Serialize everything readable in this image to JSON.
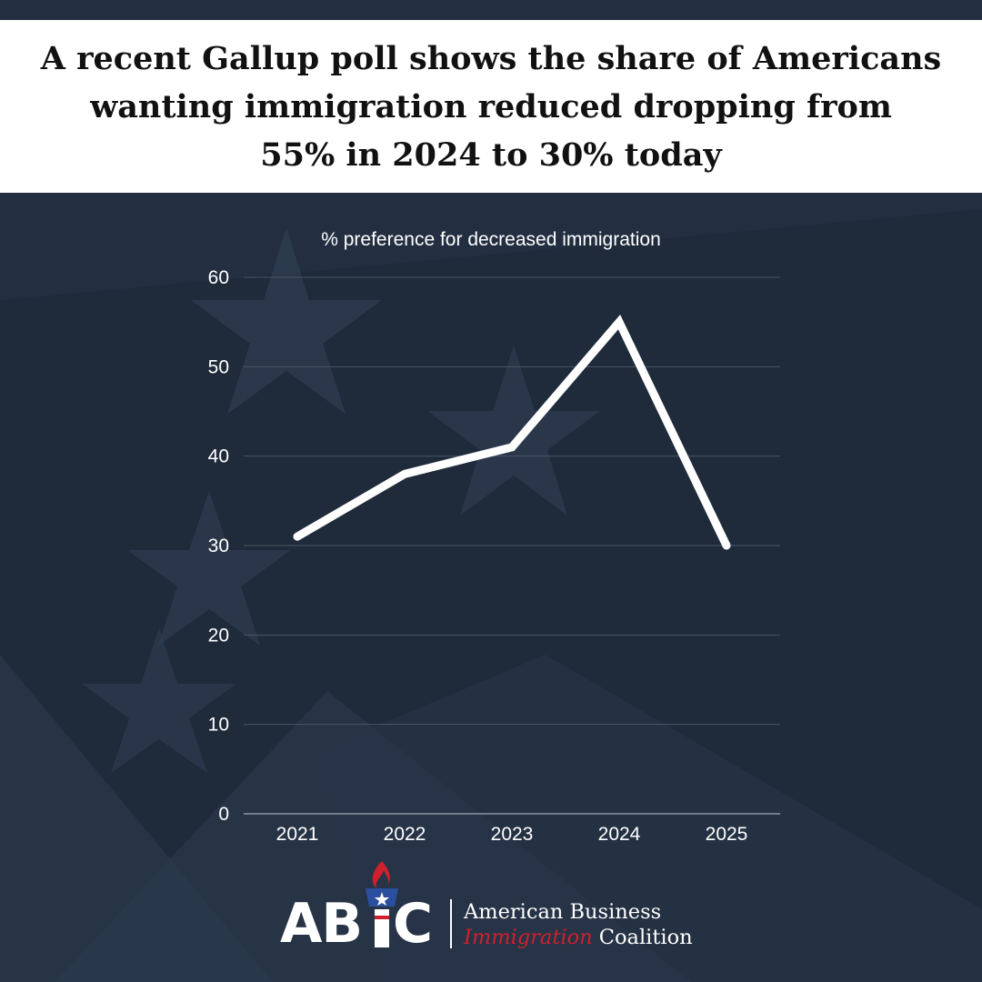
{
  "headline": {
    "line1": "A recent Gallup poll shows the share of  Americans",
    "line2": "wanting immigration reduced dropping from",
    "line3": "55% in 2024 to 30% today"
  },
  "colors": {
    "background": "#1f2b3b",
    "line": "#ffffff",
    "grid": "#4a5666",
    "logo_accent": "#d0202d",
    "torch_blue": "#2a4f9e"
  },
  "chart_data": {
    "type": "line",
    "title": "% preference for decreased immigration",
    "x": [
      "2021",
      "2022",
      "2023",
      "2024",
      "2025"
    ],
    "series": [
      {
        "values": [
          31,
          38,
          41,
          55,
          30
        ]
      }
    ],
    "ylim": [
      0,
      60
    ],
    "yticks": [
      0,
      10,
      20,
      30,
      40,
      50,
      60
    ],
    "grid": true,
    "legend": "none"
  },
  "logo": {
    "letters_ab": "AB",
    "letter_c": "C",
    "line1": "American Business",
    "line2_em": "Immigration",
    "line2_rest": " Coalition",
    "icon": "torch-icon"
  }
}
